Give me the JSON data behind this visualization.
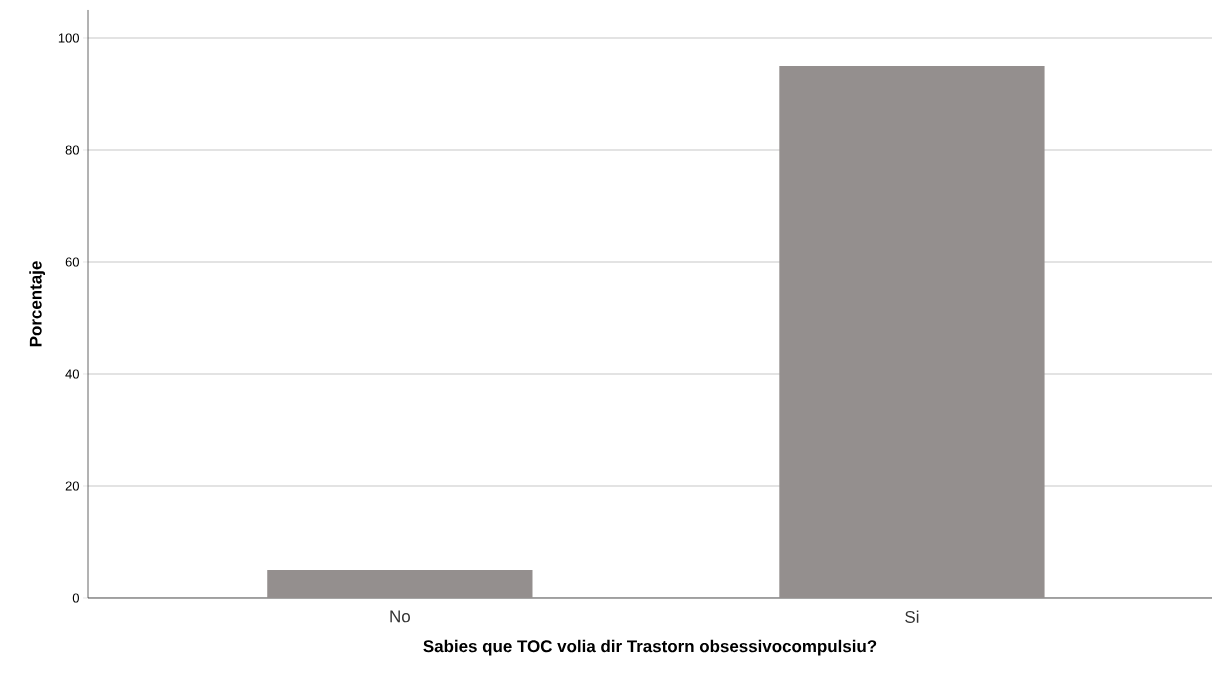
{
  "chart_data": {
    "type": "bar",
    "xlabel": "Sabies que TOC volia dir Trastorn obsessivocompulsiu?",
    "ylabel": "Porcentaje",
    "categories": [
      "No",
      "Si"
    ],
    "values": [
      5,
      95
    ],
    "color": "#948f8e",
    "ylim": [
      0,
      105
    ],
    "yticks": [
      0,
      20,
      40,
      60,
      80,
      100
    ],
    "grid": "y"
  }
}
